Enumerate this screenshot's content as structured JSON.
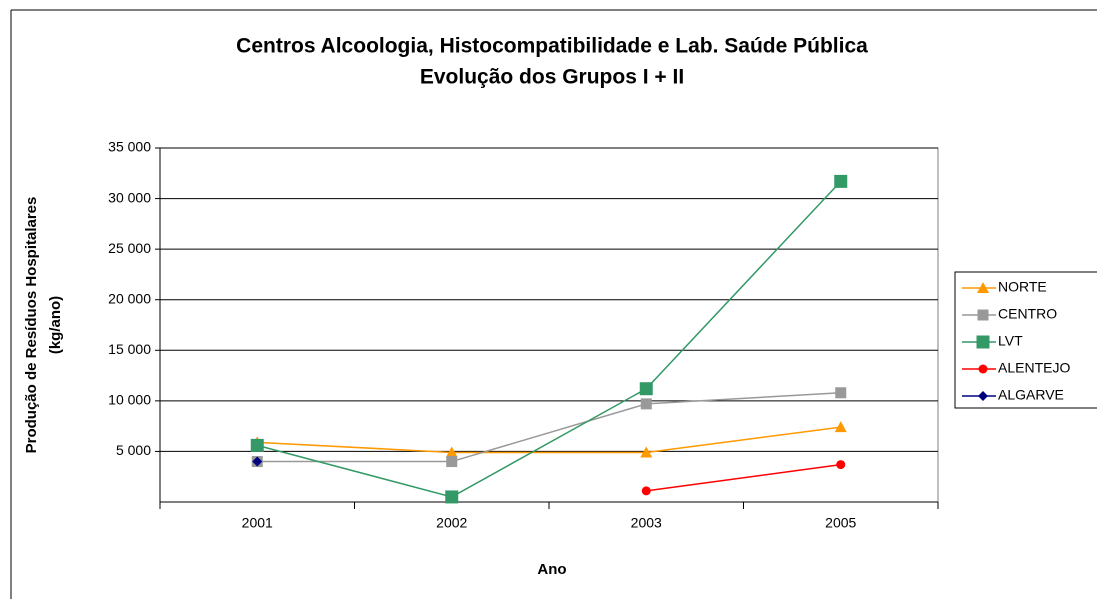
{
  "chart_data": {
    "type": "line",
    "title": [
      "Centros Alcoologia, Histocompatibilidade e Lab. Saúde Pública",
      "Evolução dos Grupos I + II"
    ],
    "x_label": "Ano",
    "y_label": [
      "Produção de Resíduos Hospitalares",
      "(kg/ano)"
    ],
    "categories": [
      "2001",
      "2002",
      "2003",
      "2005"
    ],
    "ylim": [
      0,
      35000
    ],
    "yticks": [
      {
        "value": 5000,
        "label": "5 000"
      },
      {
        "value": 10000,
        "label": "10 000"
      },
      {
        "value": 15000,
        "label": "15 000"
      },
      {
        "value": 20000,
        "label": "20 000"
      },
      {
        "value": 25000,
        "label": "25 000"
      },
      {
        "value": 30000,
        "label": "30 000"
      },
      {
        "value": 35000,
        "label": "35 000"
      }
    ],
    "grid": true,
    "legend": "right",
    "series": [
      {
        "name": "NORTE",
        "color": "#ff9900",
        "marker": "triangle",
        "values": [
          5900,
          4900,
          4900,
          7400
        ]
      },
      {
        "name": "CENTRO",
        "color": "#999999",
        "marker": "square",
        "values": [
          4000,
          4000,
          9700,
          10800
        ]
      },
      {
        "name": "LVT",
        "color": "#339966",
        "marker": "square",
        "values": [
          5600,
          500,
          11200,
          31700
        ]
      },
      {
        "name": "ALENTEJO",
        "color": "#ff0000",
        "marker": "circle",
        "values": [
          null,
          null,
          1100,
          3700
        ]
      },
      {
        "name": "ALGARVE",
        "color": "#000080",
        "marker": "diamond",
        "values": [
          4000,
          null,
          null,
          null
        ]
      }
    ]
  }
}
